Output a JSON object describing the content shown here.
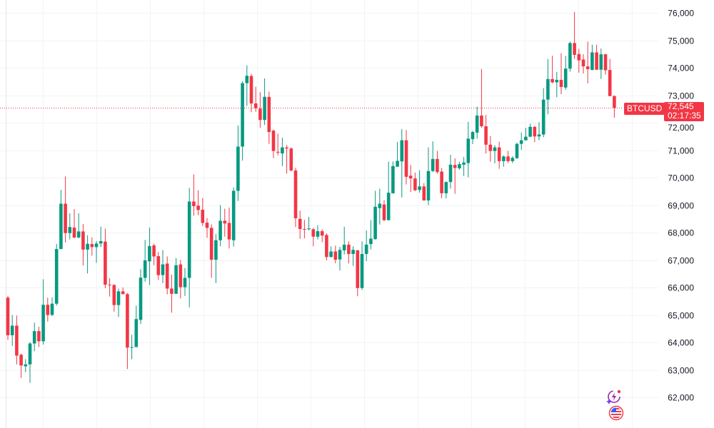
{
  "chart_data": {
    "type": "candlestick",
    "symbol": "BTCUSD",
    "last_price": "72,545",
    "countdown": "02:17:35",
    "ylim": [
      61600,
      76400
    ],
    "y_ticks": [
      "76,000",
      "75,000",
      "74,000",
      "73,000",
      "72,000",
      "71,000",
      "70,000",
      "69,000",
      "68,000",
      "67,000",
      "66,000",
      "65,000",
      "64,000",
      "63,000",
      "62,000"
    ],
    "y_tick_values": [
      76000,
      75000,
      74000,
      73000,
      72000,
      71000,
      70000,
      69000,
      68000,
      67000,
      66000,
      65000,
      64000,
      63000,
      62000
    ],
    "grid": true,
    "colors": {
      "up": "#089981",
      "down": "#F23645",
      "grid": "#F2F3F5",
      "price_line": "#F23645"
    },
    "ohlc_fields": [
      "open",
      "high",
      "low",
      "close"
    ],
    "candles": [
      [
        65630,
        65690,
        64090,
        64260
      ],
      [
        64260,
        65000,
        63870,
        64610
      ],
      [
        64610,
        64980,
        63200,
        63520
      ],
      [
        63550,
        63590,
        62710,
        63160
      ],
      [
        63130,
        63390,
        62920,
        63200
      ],
      [
        63200,
        64010,
        62530,
        63960
      ],
      [
        63960,
        64720,
        63680,
        64410
      ],
      [
        64410,
        64570,
        63830,
        64040
      ],
      [
        64040,
        66300,
        63920,
        65370
      ],
      [
        65370,
        65630,
        64760,
        65000
      ],
      [
        65000,
        65640,
        64960,
        65410
      ],
      [
        65410,
        67580,
        65340,
        67400
      ],
      [
        67400,
        69550,
        67390,
        69050
      ],
      [
        69050,
        70040,
        67640,
        67980
      ],
      [
        67980,
        68700,
        67750,
        68200
      ],
      [
        68180,
        68850,
        67790,
        67820
      ],
      [
        67820,
        68700,
        67790,
        68040
      ],
      [
        68040,
        68310,
        66800,
        67380
      ],
      [
        67380,
        67900,
        66510,
        67590
      ],
      [
        67580,
        67820,
        67160,
        67470
      ],
      [
        67470,
        67690,
        66900,
        67600
      ],
      [
        67600,
        68210,
        67470,
        67690
      ],
      [
        67670,
        68140,
        65970,
        66100
      ],
      [
        66100,
        66340,
        65670,
        66090
      ],
      [
        66090,
        66120,
        65120,
        65360
      ],
      [
        65360,
        65960,
        64930,
        65860
      ],
      [
        65860,
        66000,
        65740,
        65760
      ],
      [
        65760,
        65800,
        63030,
        63810
      ],
      [
        63820,
        64280,
        63390,
        63830
      ],
      [
        63830,
        65340,
        63830,
        64850
      ],
      [
        64820,
        66670,
        64670,
        66360
      ],
      [
        66350,
        67730,
        66210,
        66990
      ],
      [
        66950,
        68180,
        66090,
        67510
      ],
      [
        67530,
        67600,
        66810,
        67130
      ],
      [
        67140,
        67290,
        66270,
        66450
      ],
      [
        66450,
        67360,
        66160,
        66840
      ],
      [
        66870,
        67130,
        65750,
        65960
      ],
      [
        65960,
        66470,
        65080,
        65770
      ],
      [
        65770,
        67070,
        65770,
        66810
      ],
      [
        66840,
        67000,
        65600,
        66010
      ],
      [
        66010,
        66710,
        65690,
        66350
      ],
      [
        66350,
        69630,
        65280,
        69130
      ],
      [
        69130,
        70120,
        68610,
        68960
      ],
      [
        68980,
        69540,
        68630,
        68820
      ],
      [
        68830,
        69260,
        68240,
        68350
      ],
      [
        68360,
        68530,
        67810,
        68170
      ],
      [
        68170,
        68300,
        66350,
        67010
      ],
      [
        67010,
        67940,
        66160,
        67720
      ],
      [
        67720,
        69000,
        67500,
        68430
      ],
      [
        68430,
        68870,
        67850,
        68330
      ],
      [
        68350,
        68910,
        67420,
        67750
      ],
      [
        67720,
        69640,
        67490,
        69520
      ],
      [
        69520,
        71900,
        69150,
        71130
      ],
      [
        71130,
        73510,
        70620,
        73440
      ],
      [
        73440,
        74090,
        72610,
        73710
      ],
      [
        73700,
        73780,
        72380,
        72700
      ],
      [
        72700,
        73310,
        72400,
        72530
      ],
      [
        72510,
        73110,
        71820,
        72100
      ],
      [
        72100,
        73610,
        71920,
        72940
      ],
      [
        72940,
        73130,
        71230,
        71660
      ],
      [
        71710,
        71750,
        70710,
        70970
      ],
      [
        70940,
        71600,
        70810,
        70910
      ],
      [
        70880,
        71450,
        70420,
        71100
      ],
      [
        71100,
        71190,
        70150,
        71060
      ],
      [
        71060,
        71100,
        70230,
        70260
      ],
      [
        70260,
        70360,
        68200,
        68520
      ],
      [
        68500,
        68800,
        67770,
        68130
      ],
      [
        68130,
        68460,
        67790,
        68120
      ],
      [
        68120,
        68570,
        68080,
        68150
      ],
      [
        68120,
        68170,
        67500,
        67850
      ],
      [
        67850,
        68270,
        67750,
        68050
      ],
      [
        68050,
        68120,
        67650,
        67890
      ],
      [
        67910,
        67970,
        66990,
        67110
      ],
      [
        67110,
        67500,
        67090,
        67310
      ],
      [
        67310,
        67520,
        66880,
        67010
      ],
      [
        67020,
        67480,
        66620,
        67370
      ],
      [
        67350,
        68210,
        67200,
        67560
      ],
      [
        67560,
        67680,
        66880,
        67220
      ],
      [
        67220,
        67500,
        66790,
        67370
      ],
      [
        67350,
        67370,
        65680,
        65980
      ],
      [
        65980,
        67680,
        65910,
        67220
      ],
      [
        67220,
        68080,
        66960,
        67560
      ],
      [
        67580,
        68450,
        67390,
        67780
      ],
      [
        67760,
        69520,
        67740,
        68940
      ],
      [
        68890,
        69600,
        68290,
        69050
      ],
      [
        69020,
        69180,
        68420,
        68450
      ],
      [
        68450,
        70580,
        68440,
        69450
      ],
      [
        69430,
        70590,
        69420,
        70420
      ],
      [
        70400,
        71300,
        70390,
        70610
      ],
      [
        70590,
        71770,
        69280,
        71360
      ],
      [
        71360,
        71730,
        69750,
        70030
      ],
      [
        70070,
        70460,
        69480,
        69970
      ],
      [
        69970,
        70180,
        69510,
        69540
      ],
      [
        69550,
        70270,
        69450,
        69680
      ],
      [
        69680,
        69800,
        69160,
        69170
      ],
      [
        69170,
        71100,
        69000,
        70240
      ],
      [
        70240,
        71320,
        70200,
        70680
      ],
      [
        70680,
        70970,
        70140,
        70200
      ],
      [
        70220,
        70350,
        69250,
        69430
      ],
      [
        69430,
        69860,
        69240,
        69840
      ],
      [
        69840,
        70830,
        69600,
        70470
      ],
      [
        70460,
        70700,
        69410,
        70350
      ],
      [
        70340,
        70580,
        70290,
        70490
      ],
      [
        70470,
        70750,
        70060,
        70550
      ],
      [
        70530,
        72030,
        70010,
        71420
      ],
      [
        71400,
        71700,
        71220,
        71660
      ],
      [
        71640,
        72580,
        71420,
        72260
      ],
      [
        72260,
        73950,
        71810,
        71870
      ],
      [
        71870,
        72280,
        70880,
        71200
      ],
      [
        71200,
        71510,
        70580,
        70970
      ],
      [
        70970,
        71180,
        70520,
        71100
      ],
      [
        71100,
        71310,
        70320,
        70600
      ],
      [
        70600,
        70810,
        70400,
        70770
      ],
      [
        70770,
        70970,
        70530,
        70600
      ],
      [
        70600,
        70780,
        70530,
        70720
      ],
      [
        70710,
        71270,
        70680,
        71230
      ],
      [
        71230,
        71640,
        71010,
        71360
      ],
      [
        71360,
        71810,
        71350,
        71490
      ],
      [
        71490,
        71960,
        71470,
        71850
      ],
      [
        71850,
        71870,
        71290,
        71500
      ],
      [
        71500,
        72020,
        71360,
        71570
      ],
      [
        71570,
        73260,
        71470,
        72840
      ],
      [
        72840,
        74320,
        72310,
        73590
      ],
      [
        73590,
        74440,
        73430,
        73470
      ],
      [
        73470,
        73850,
        72930,
        73560
      ],
      [
        73560,
        74530,
        73040,
        73300
      ],
      [
        73280,
        74430,
        73200,
        73970
      ],
      [
        73970,
        74950,
        73860,
        74900
      ],
      [
        74900,
        76030,
        74320,
        74470
      ],
      [
        74500,
        74690,
        73820,
        74270
      ],
      [
        74300,
        74490,
        73790,
        74050
      ],
      [
        74050,
        74950,
        73430,
        73950
      ],
      [
        73920,
        74840,
        73910,
        74560
      ],
      [
        74560,
        74840,
        73920,
        73930
      ],
      [
        73930,
        74700,
        73590,
        74490
      ],
      [
        74490,
        74510,
        73750,
        73910
      ],
      [
        73920,
        74320,
        72960,
        72970
      ],
      [
        72970,
        73000,
        72180,
        72545
      ]
    ]
  },
  "icons": {
    "events": "lightning-event-icon",
    "economic": "us-flag-icon"
  }
}
